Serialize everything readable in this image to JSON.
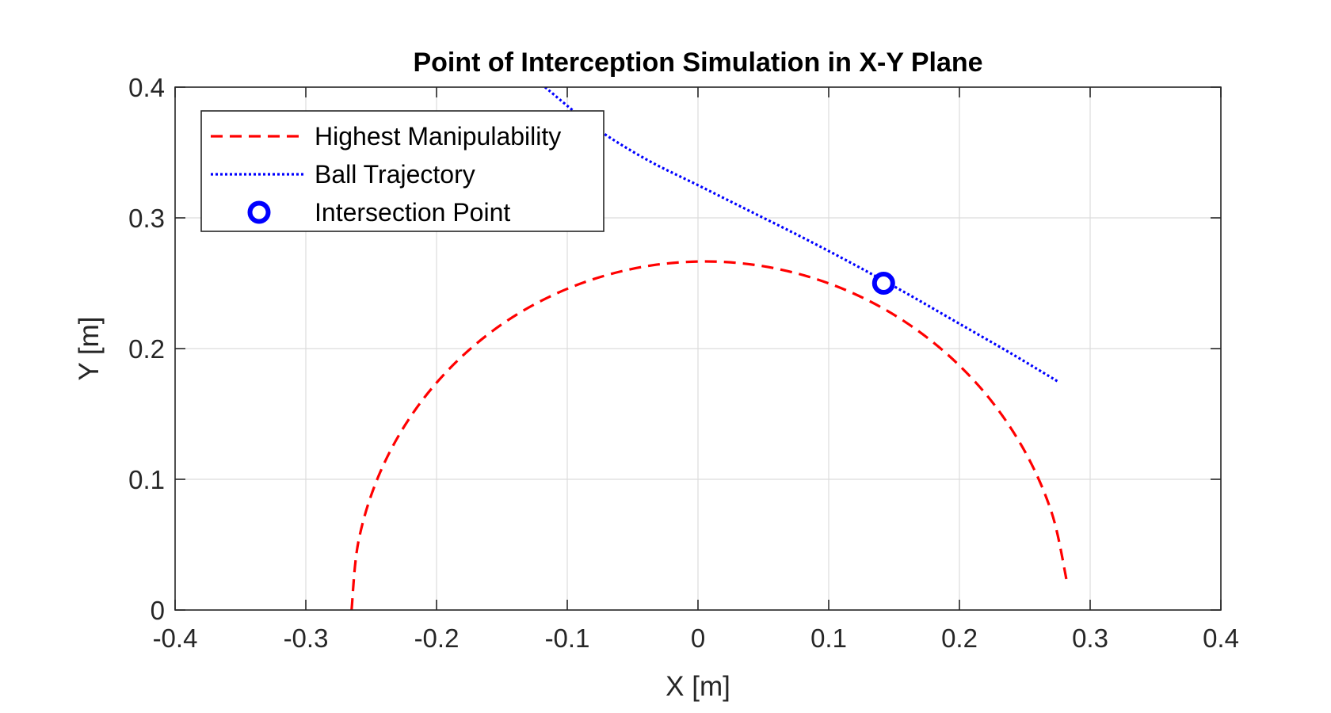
{
  "chart_data": {
    "type": "line",
    "title": "Point of Interception Simulation in X-Y Plane",
    "xlabel": "X [m]",
    "ylabel": "Y [m]",
    "xlim": [
      -0.4,
      0.4
    ],
    "ylim": [
      0,
      0.4
    ],
    "xticks": [
      -0.4,
      -0.3,
      -0.2,
      -0.1,
      0,
      0.1,
      0.2,
      0.3,
      0.4
    ],
    "xtick_labels": [
      "-0.4",
      "-0.3",
      "-0.2",
      "-0.1",
      "0",
      "0.1",
      "0.2",
      "0.3",
      "0.4"
    ],
    "yticks": [
      0,
      0.1,
      0.2,
      0.3,
      0.4
    ],
    "ytick_labels": [
      "0",
      "0.1",
      "0.2",
      "0.3",
      "0.4"
    ],
    "grid": true,
    "legend_position": "top-left",
    "series": [
      {
        "name": "Highest Manipulability",
        "style": "dashed",
        "color": "#ff0000",
        "x": [
          -0.265,
          -0.2595,
          -0.2432,
          -0.2168,
          -0.1812,
          -0.1379,
          -0.0882,
          -0.0343,
          0.0212,
          0.0761,
          0.1283,
          0.1756,
          0.2161,
          0.2481,
          0.2705,
          0.2822
        ],
        "y": [
          0.0,
          0.0537,
          0.1052,
          0.1524,
          0.1934,
          0.2265,
          0.2503,
          0.2638,
          0.2662,
          0.2574,
          0.2378,
          0.2082,
          0.17,
          0.1248,
          0.0747,
          0.0216
        ]
      },
      {
        "name": "Ball Trajectory",
        "style": "dotted",
        "color": "#0000ff",
        "x": [
          -0.117,
          -0.08,
          -0.04,
          0.0,
          0.04,
          0.08,
          0.12,
          0.16,
          0.2,
          0.24,
          0.275
        ],
        "y": [
          0.4,
          0.37,
          0.345,
          0.325,
          0.305,
          0.285,
          0.264,
          0.242,
          0.219,
          0.196,
          0.175
        ]
      },
      {
        "name": "Intersection Point",
        "style": "marker",
        "marker": "circle",
        "color": "#0000ff",
        "x": [
          0.142
        ],
        "y": [
          0.25
        ]
      }
    ]
  }
}
